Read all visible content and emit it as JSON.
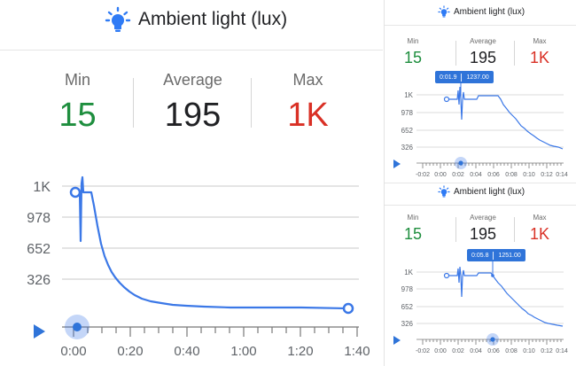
{
  "colors": {
    "accent": "#3b78e7",
    "min": "#1e8e3e",
    "max": "#d93025",
    "axis": "#8c8c8c",
    "grid": "#c8c8c8",
    "bulb": "#2f7bf5"
  },
  "main": {
    "title": "Ambient light (lux)",
    "stats": {
      "min_label": "Min",
      "min_value": "15",
      "avg_label": "Average",
      "avg_value": "195",
      "max_label": "Max",
      "max_value": "1K"
    },
    "y_ticks": [
      "1K",
      "978",
      "652",
      "326"
    ],
    "x_ticks": [
      "0:00",
      "0:20",
      "0:40",
      "1:00",
      "1:20",
      "1:40"
    ]
  },
  "top_right": {
    "title": "Ambient light (lux)",
    "stats": {
      "min_label": "Min",
      "min_value": "15",
      "avg_label": "Average",
      "avg_value": "195",
      "max_label": "Max",
      "max_value": "1K"
    },
    "y_ticks": [
      "1K",
      "978",
      "652",
      "326"
    ],
    "x_ticks": [
      "-0:02",
      "0:00",
      "0:02",
      "0:04",
      "0:06",
      "0:08",
      "0:10",
      "0:12",
      "0:14"
    ],
    "tooltip": {
      "time": "0:01.9",
      "value": "1237.00"
    }
  },
  "bottom_right": {
    "title": "Ambient light (lux)",
    "stats": {
      "min_label": "Min",
      "min_value": "15",
      "avg_label": "Average",
      "avg_value": "195",
      "max_label": "Max",
      "max_value": "1K"
    },
    "y_ticks": [
      "1K",
      "978",
      "652",
      "326"
    ],
    "x_ticks": [
      "-0:02",
      "0:00",
      "0:02",
      "0:04",
      "0:06",
      "0:08",
      "0:10",
      "0:12",
      "0:14"
    ],
    "tooltip": {
      "time": "0:05.8",
      "value": "1251.00"
    }
  }
}
